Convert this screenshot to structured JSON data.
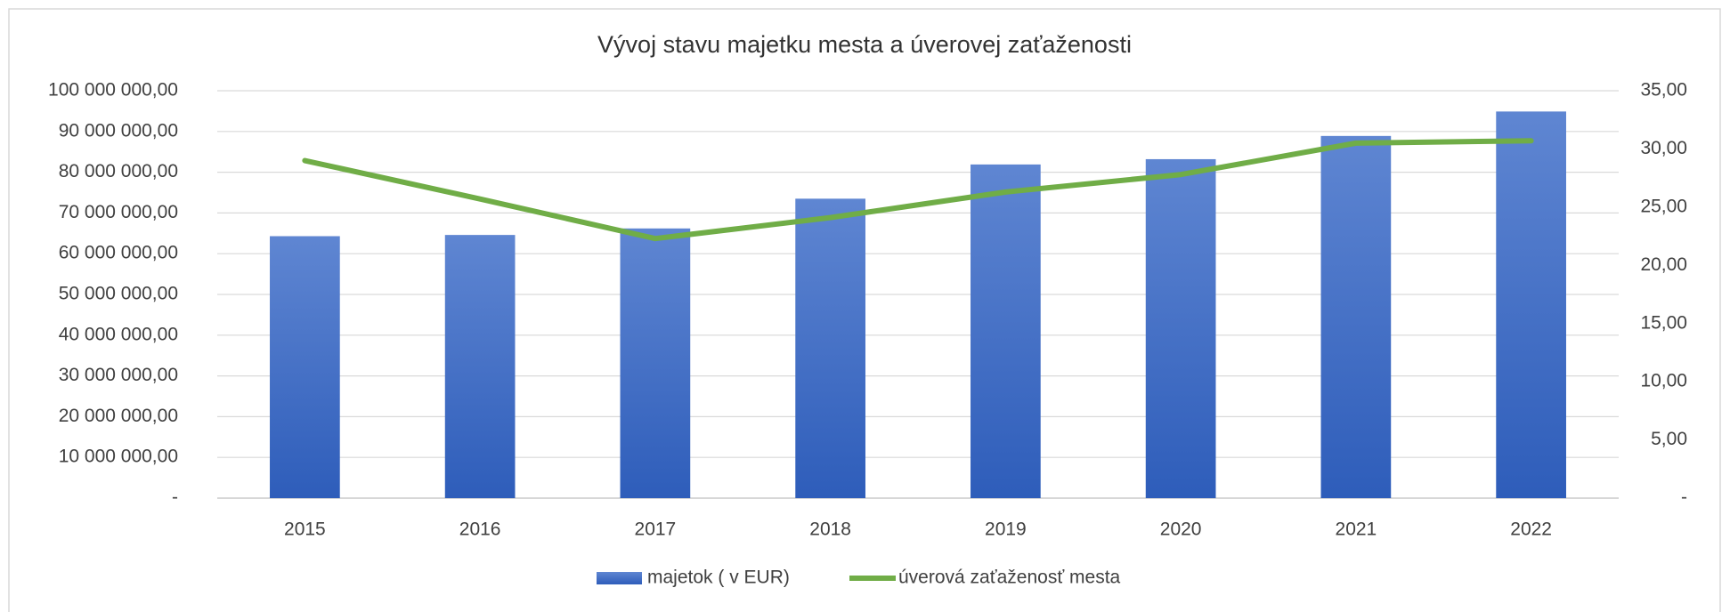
{
  "chart_data": {
    "type": "bar_line",
    "title": "Vývoj stavu majetku mesta a úverovej zaťaženosti",
    "categories": [
      "2015",
      "2016",
      "2017",
      "2018",
      "2019",
      "2020",
      "2021",
      "2022"
    ],
    "series": [
      {
        "name": "majetok ( v EUR)",
        "type": "bar",
        "color": "#4472c4",
        "axis": "y",
        "values": [
          64300000,
          64600000,
          66200000,
          73500000,
          81900000,
          83200000,
          88900000,
          94900000
        ]
      },
      {
        "name": "úverová zaťaženosť mesta",
        "type": "line",
        "color": "#70ad47",
        "axis": "y2",
        "values": [
          29.0,
          25.7,
          22.3,
          24.1,
          26.3,
          27.8,
          30.5,
          30.7
        ]
      }
    ],
    "ylim": [
      0,
      100000000
    ],
    "yticks": [
      {
        "value": 0,
        "label": "-"
      },
      {
        "value": 10000000,
        "label": "10 000 000,00"
      },
      {
        "value": 20000000,
        "label": "20 000 000,00"
      },
      {
        "value": 30000000,
        "label": "30 000 000,00"
      },
      {
        "value": 40000000,
        "label": "40 000 000,00"
      },
      {
        "value": 50000000,
        "label": "50 000 000,00"
      },
      {
        "value": 60000000,
        "label": "60 000 000,00"
      },
      {
        "value": 70000000,
        "label": "70 000 000,00"
      },
      {
        "value": 80000000,
        "label": "80 000 000,00"
      },
      {
        "value": 90000000,
        "label": "90 000 000,00"
      },
      {
        "value": 100000000,
        "label": "100 000 000,00"
      }
    ],
    "y2lim": [
      0,
      35
    ],
    "y2ticks": [
      {
        "value": 0,
        "label": "-"
      },
      {
        "value": 5,
        "label": "5,00"
      },
      {
        "value": 10,
        "label": "10,00"
      },
      {
        "value": 15,
        "label": "15,00"
      },
      {
        "value": 20,
        "label": "20,00"
      },
      {
        "value": 25,
        "label": "25,00"
      },
      {
        "value": 30,
        "label": "30,00"
      },
      {
        "value": 35,
        "label": "35,00"
      }
    ],
    "grid": true,
    "legend": "bottom"
  }
}
